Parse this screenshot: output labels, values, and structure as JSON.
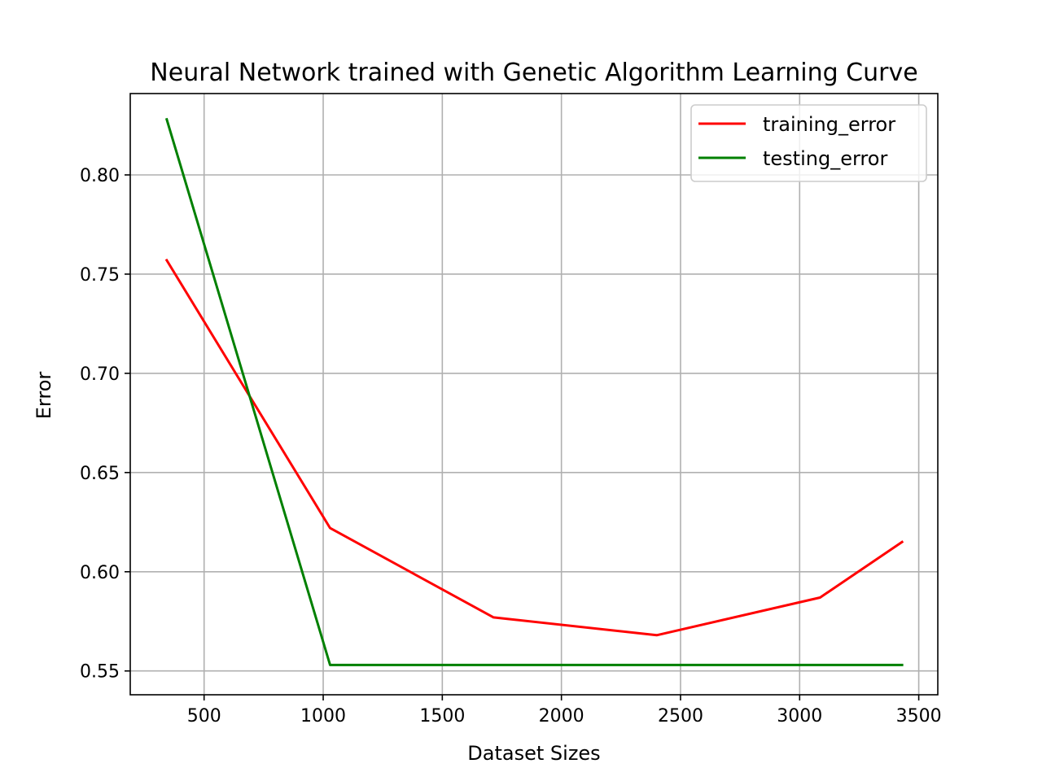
{
  "chart_data": {
    "type": "line",
    "title": "Neural Network trained with Genetic Algorithm Learning Curve",
    "xlabel": "Dataset Sizes",
    "ylabel": "Error",
    "xlim": [
      190,
      3580
    ],
    "ylim": [
      0.538,
      0.841
    ],
    "xticks": [
      500,
      1000,
      1500,
      2000,
      2500,
      3000,
      3500
    ],
    "xtick_labels": [
      "500",
      "1000",
      "1500",
      "2000",
      "2500",
      "3000",
      "3500"
    ],
    "yticks": [
      0.55,
      0.6,
      0.65,
      0.7,
      0.75,
      0.8
    ],
    "ytick_labels": [
      "0.55",
      "0.60",
      "0.65",
      "0.70",
      "0.75",
      "0.80"
    ],
    "grid": true,
    "legend_position": "top-right",
    "x": [
      343,
      1029,
      1715,
      2400,
      3086,
      3430
    ],
    "series": [
      {
        "name": "training_error",
        "color": "#ff0000",
        "values": [
          0.757,
          0.622,
          0.577,
          0.568,
          0.587,
          0.615
        ]
      },
      {
        "name": "testing_error",
        "color": "#008000",
        "values": [
          0.828,
          0.553,
          0.553,
          0.553,
          0.553,
          0.553
        ]
      }
    ]
  }
}
